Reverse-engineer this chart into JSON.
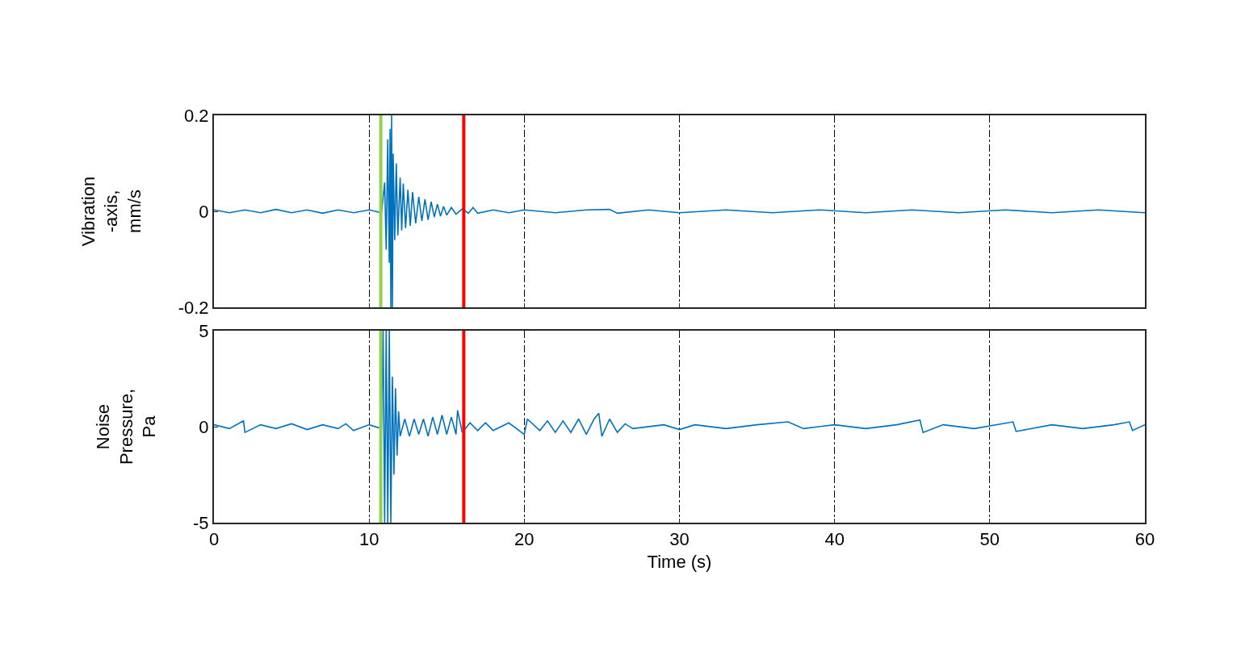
{
  "chart_data": [
    {
      "type": "line",
      "ylabel": "Vibration\n-axis,\nmm/s",
      "xlim": [
        0,
        60
      ],
      "xticks": [
        0,
        10,
        20,
        30,
        40,
        50,
        60
      ],
      "ylim": [
        -0.2,
        0.2
      ],
      "yticks": [
        -0.2,
        0,
        0.2
      ],
      "grid": "x",
      "tick_labels": "y",
      "x": [
        0,
        1,
        2,
        3,
        4,
        5,
        6,
        7,
        8,
        9,
        10,
        10.8,
        11.0,
        11.1,
        11.2,
        11.3,
        11.35,
        11.4,
        11.45,
        11.5,
        11.55,
        11.65,
        11.75,
        11.85,
        12.0,
        12.1,
        12.2,
        12.35,
        12.5,
        12.65,
        12.8,
        13.0,
        13.2,
        13.4,
        13.6,
        13.8,
        14.0,
        14.2,
        14.4,
        14.6,
        14.8,
        15.0,
        15.3,
        15.6,
        16.0,
        16.4,
        16.7,
        17.0,
        18,
        19,
        20,
        22,
        24,
        25.5,
        26,
        28,
        30,
        33,
        36,
        39,
        42,
        45,
        48,
        51,
        54,
        57,
        60
      ],
      "series": [
        {
          "color": "#0072bd",
          "values": [
            0.003,
            -0.003,
            0.003,
            -0.003,
            0.004,
            -0.003,
            0.003,
            -0.004,
            0.003,
            -0.003,
            0.003,
            -0.003,
            0.06,
            -0.08,
            0.15,
            -0.107,
            0.172,
            -0.2,
            0.2,
            -0.2,
            0.12,
            -0.06,
            0.1,
            -0.05,
            0.07,
            -0.04,
            0.058,
            -0.035,
            0.045,
            -0.03,
            0.04,
            -0.025,
            0.03,
            -0.02,
            0.025,
            -0.018,
            0.02,
            -0.012,
            0.015,
            -0.01,
            0.01,
            -0.008,
            0.008,
            -0.006,
            0.005,
            -0.004,
            0.008,
            -0.004,
            0.003,
            -0.003,
            0.003,
            -0.003,
            0.003,
            0.004,
            -0.004,
            0.003,
            -0.003,
            0.003,
            -0.003,
            0.003,
            -0.003,
            0.003,
            -0.003,
            0.003,
            -0.003,
            0.003,
            -0.003
          ]
        }
      ],
      "ref_lines": [
        {
          "axis": "x",
          "value": 10.75,
          "color": "#92d050"
        },
        {
          "axis": "x",
          "value": 16.1,
          "color": "#ff0000"
        }
      ]
    },
    {
      "type": "line",
      "ylabel": "Noise\nPressure,\nPa",
      "xlabel": "Time (s)",
      "xlim": [
        0,
        60
      ],
      "xticks": [
        0,
        10,
        20,
        30,
        40,
        50,
        60
      ],
      "ylim": [
        -5,
        5
      ],
      "yticks": [
        -5,
        0,
        5
      ],
      "grid": "x",
      "x": [
        0,
        1,
        1.9,
        2.0,
        3,
        4,
        5,
        6,
        7,
        8,
        8.5,
        9,
        10,
        10.8,
        10.9,
        11.0,
        11.1,
        11.2,
        11.3,
        11.4,
        11.5,
        11.6,
        11.7,
        11.8,
        11.9,
        12.0,
        12.3,
        12.6,
        12.9,
        13.2,
        13.5,
        13.8,
        14.1,
        14.4,
        14.7,
        15.0,
        15.3,
        15.6,
        15.7,
        16.0,
        16.5,
        17.0,
        17.5,
        18.0,
        19.0,
        20.0,
        20.2,
        21.0,
        21.5,
        22.0,
        22.5,
        23.0,
        23.5,
        24.0,
        24.5,
        24.8,
        25.0,
        25.5,
        26.0,
        26.5,
        27,
        29,
        30,
        31,
        33,
        35,
        37,
        38,
        40,
        42,
        44,
        45.5,
        45.7,
        47,
        49,
        51.5,
        51.7,
        54,
        56,
        58,
        59,
        59.2,
        60
      ],
      "series": [
        {
          "color": "#0072bd",
          "values": [
            0.1,
            -0.1,
            0.3,
            -0.3,
            0.1,
            -0.1,
            0.15,
            -0.15,
            0.1,
            -0.1,
            0.15,
            -0.2,
            0.1,
            -0.1,
            5,
            -5,
            5,
            -5,
            5,
            -5,
            2.6,
            -2.5,
            2.0,
            -1.5,
            0.8,
            -0.5,
            0.4,
            -0.5,
            0.4,
            -0.4,
            0.4,
            -0.5,
            0.5,
            -0.4,
            0.6,
            -0.4,
            0.5,
            -0.4,
            0.85,
            -0.3,
            0.2,
            -0.2,
            0.2,
            -0.2,
            0.2,
            -0.4,
            0.4,
            -0.2,
            0.3,
            -0.3,
            0.3,
            -0.3,
            0.4,
            -0.4,
            0.4,
            0.7,
            -0.5,
            0.4,
            -0.3,
            0.15,
            -0.1,
            0.1,
            -0.15,
            0.1,
            -0.1,
            0.1,
            0.25,
            -0.1,
            0.1,
            -0.1,
            0.1,
            0.35,
            -0.3,
            0.1,
            -0.1,
            0.25,
            -0.25,
            0.1,
            -0.1,
            0.1,
            0.25,
            -0.2,
            0.1
          ]
        }
      ],
      "ref_lines": [
        {
          "axis": "x",
          "value": 10.75,
          "color": "#92d050"
        },
        {
          "axis": "x",
          "value": 16.1,
          "color": "#ff0000"
        }
      ]
    }
  ]
}
